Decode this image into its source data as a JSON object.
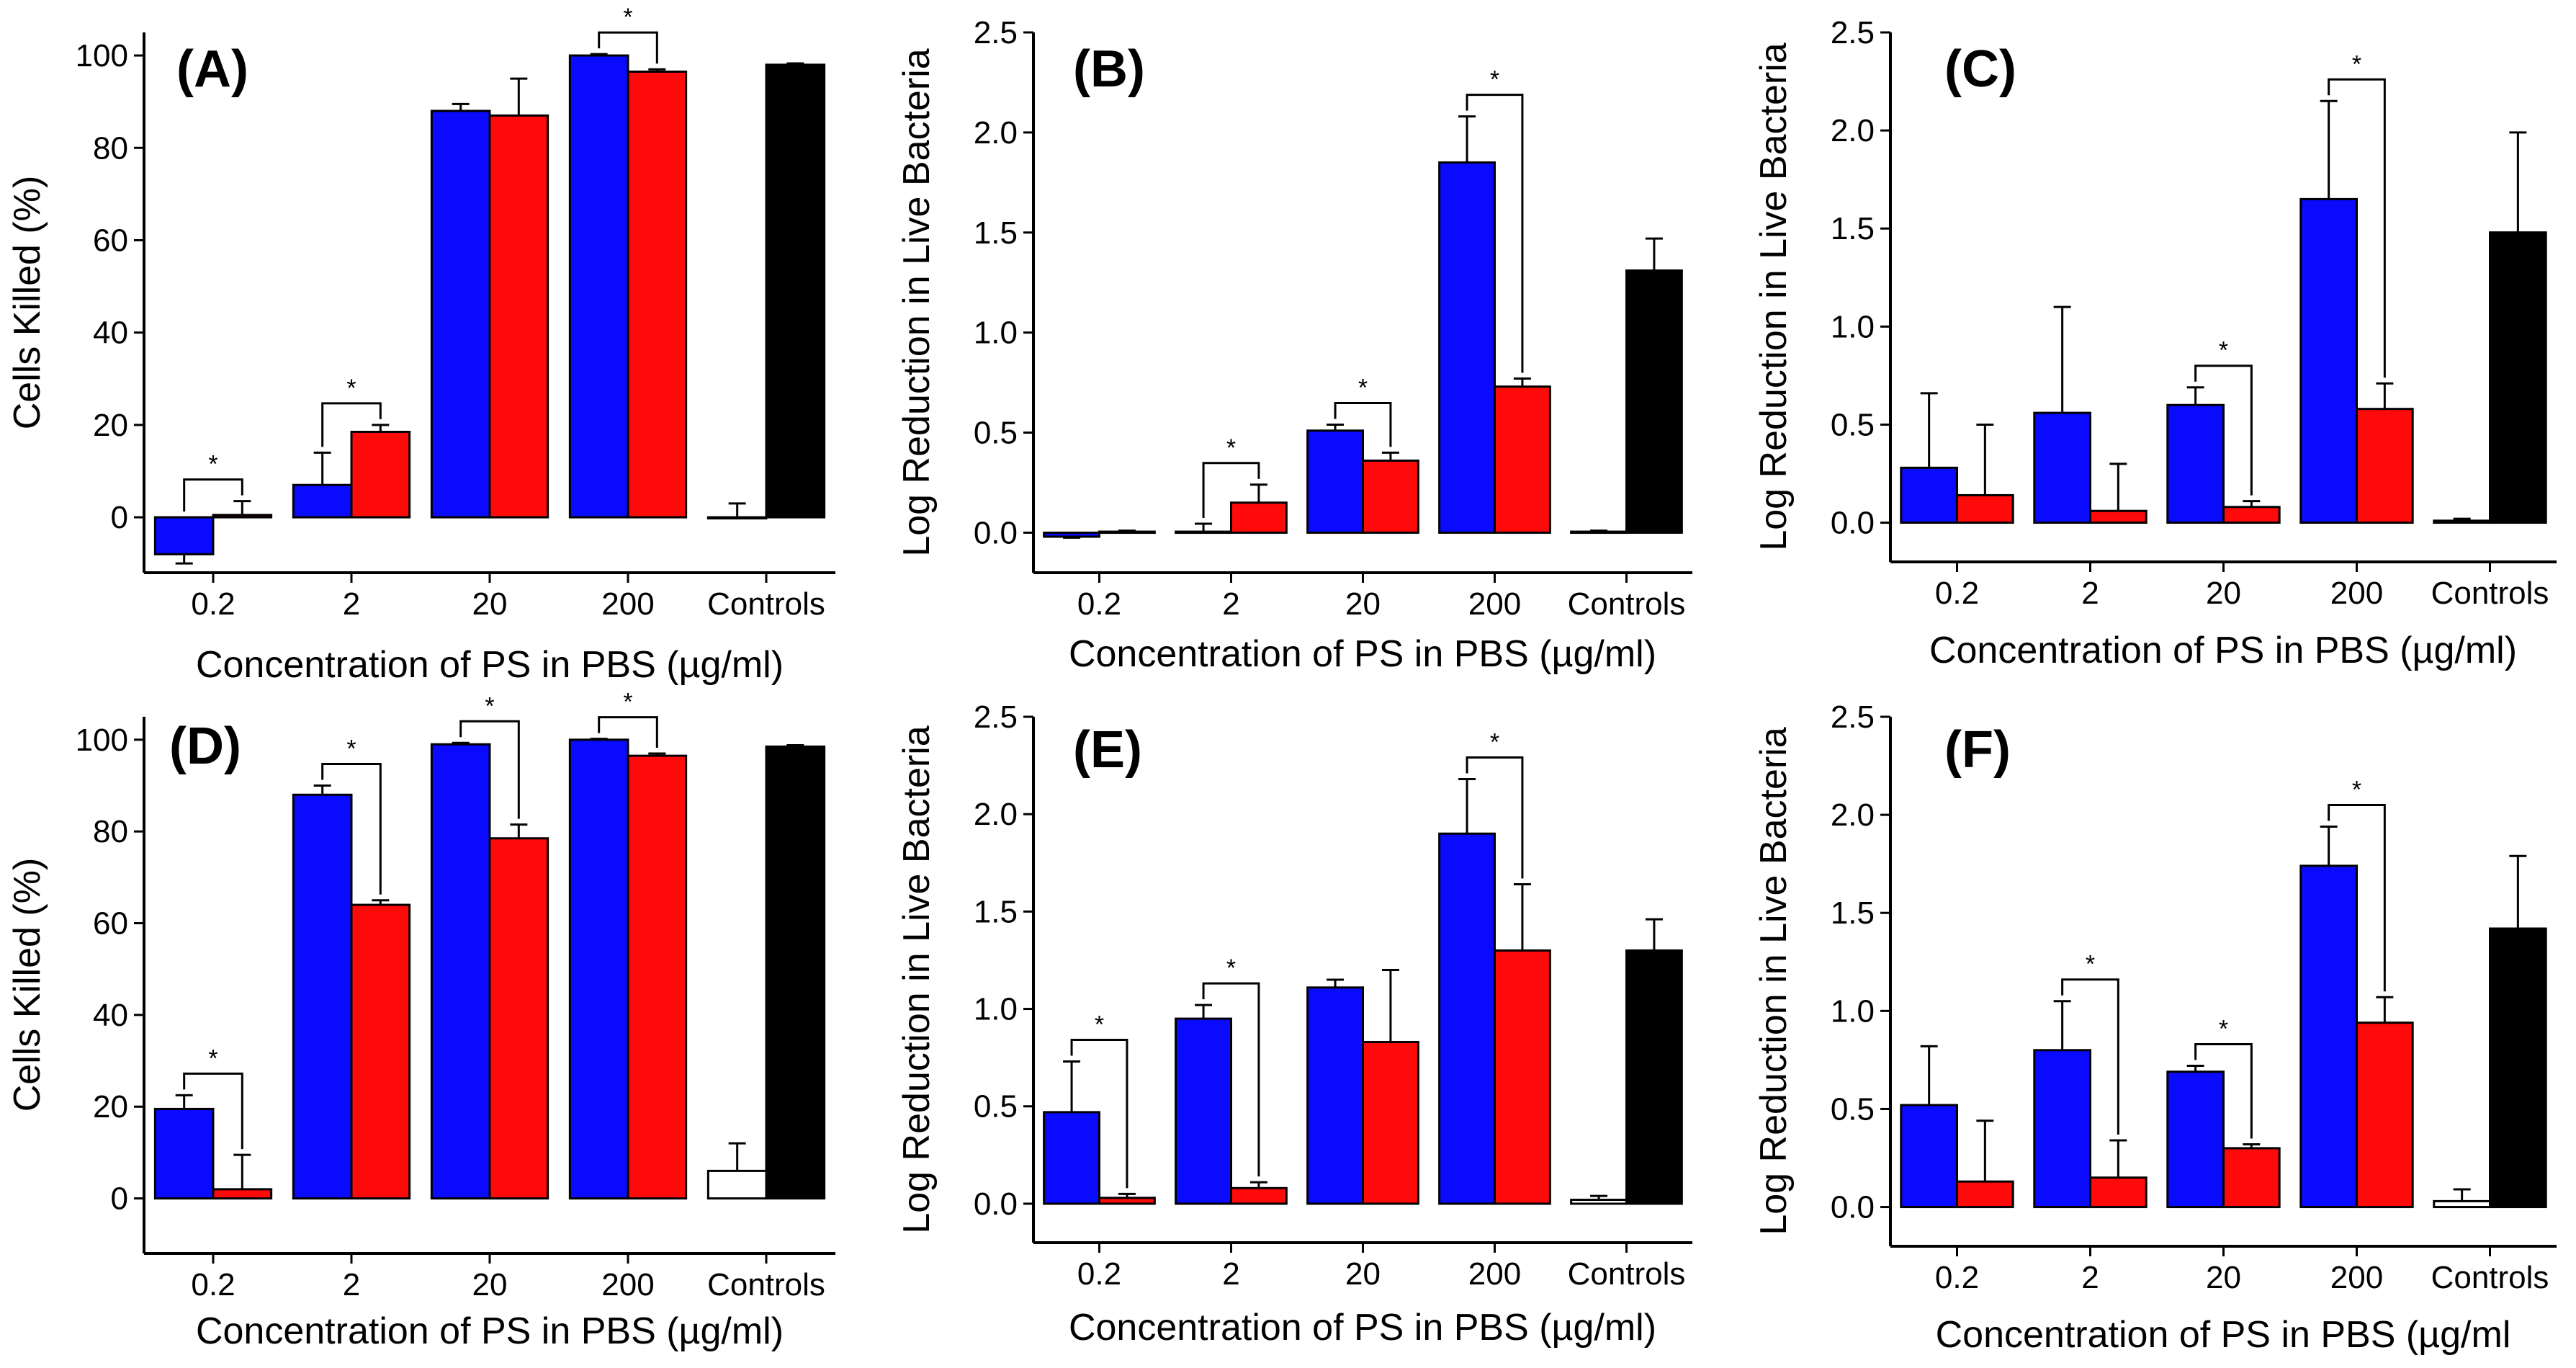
{
  "colors": {
    "series1": "#0a0aff",
    "series2": "#ff0a0a",
    "control_neg": "#ffffff",
    "control_pos": "#000000"
  },
  "chart_data": [
    {
      "id": "A",
      "type": "bar",
      "panel_label": "(A)",
      "xlabel": "Concentration of PS in PBS (µg/ml)",
      "ylabel": "Cells Killed (%)",
      "ylim": [
        -12,
        105
      ],
      "yticks": [
        0,
        20,
        40,
        60,
        80,
        100
      ],
      "ytick_labels": [
        "0",
        "20",
        "40",
        "60",
        "80",
        "100"
      ],
      "categories": [
        "0.2",
        "2",
        "20",
        "200",
        "Controls"
      ],
      "series": [
        {
          "name": "blue",
          "values": [
            -8,
            7,
            88,
            100,
            0
          ],
          "errors": [
            2,
            7,
            1.5,
            0.3,
            3
          ]
        },
        {
          "name": "red",
          "values": [
            0.5,
            18.5,
            87,
            96.5,
            98
          ],
          "errors": [
            3,
            1.5,
            8,
            0.5,
            0.3
          ]
        }
      ],
      "significance": [
        "*",
        "*",
        "",
        "*",
        ""
      ]
    },
    {
      "id": "B",
      "type": "bar",
      "panel_label": "(B)",
      "xlabel": "Concentration of PS in PBS (µg/ml)",
      "ylabel": "Log Reduction in Live Bacteria",
      "ylim": [
        -0.2,
        2.5
      ],
      "yticks": [
        0,
        0.5,
        1,
        1.5,
        2,
        2.5
      ],
      "ytick_labels": [
        "0.0",
        "0.5",
        "1.0",
        "1.5",
        "2.0",
        "2.5"
      ],
      "categories": [
        "0.2",
        "2",
        "20",
        "200",
        "Controls"
      ],
      "series": [
        {
          "name": "blue",
          "values": [
            -0.02,
            0.005,
            0.51,
            1.85,
            0.005
          ],
          "errors": [
            0.005,
            0.04,
            0.03,
            0.23,
            0.005
          ]
        },
        {
          "name": "red",
          "values": [
            0.005,
            0.15,
            0.36,
            0.73,
            1.31
          ],
          "errors": [
            0.005,
            0.09,
            0.04,
            0.04,
            0.16
          ]
        }
      ],
      "significance": [
        "",
        "*",
        "*",
        "*",
        ""
      ]
    },
    {
      "id": "C",
      "type": "bar",
      "panel_label": "(C)",
      "xlabel": "Concentration of PS in PBS (µg/ml)",
      "ylabel": "Log Reduction in Live Bacteria",
      "ylim": [
        -0.2,
        2.5
      ],
      "yticks": [
        0,
        0.5,
        1,
        1.5,
        2,
        2.5
      ],
      "ytick_labels": [
        "0.0",
        "0.5",
        "1.0",
        "1.5",
        "2.0",
        "2.5"
      ],
      "categories": [
        "0.2",
        "2",
        "20",
        "200",
        "Controls"
      ],
      "series": [
        {
          "name": "blue",
          "values": [
            0.28,
            0.56,
            0.6,
            1.65,
            0.01
          ],
          "errors": [
            0.38,
            0.54,
            0.09,
            0.5,
            0.01
          ]
        },
        {
          "name": "red",
          "values": [
            0.14,
            0.06,
            0.08,
            0.58,
            1.48
          ],
          "errors": [
            0.36,
            0.24,
            0.03,
            0.13,
            0.51
          ]
        }
      ],
      "significance": [
        "",
        "",
        "*",
        "*",
        ""
      ]
    },
    {
      "id": "D",
      "type": "bar",
      "panel_label": "(D)",
      "xlabel": "Concentration of PS in PBS (µg/ml)",
      "ylabel": "Cells Killed (%)",
      "ylim": [
        -12,
        105
      ],
      "yticks": [
        0,
        20,
        40,
        60,
        80,
        100
      ],
      "ytick_labels": [
        "0",
        "20",
        "40",
        "60",
        "80",
        "100"
      ],
      "categories": [
        "0.2",
        "2",
        "20",
        "200",
        "Controls"
      ],
      "series": [
        {
          "name": "blue",
          "values": [
            19.5,
            88,
            99,
            100,
            6
          ],
          "errors": [
            3,
            2,
            0.3,
            0.2,
            6
          ]
        },
        {
          "name": "red",
          "values": [
            2,
            64,
            78.5,
            96.5,
            98.5
          ],
          "errors": [
            7.5,
            1,
            3,
            0.5,
            0.3
          ]
        }
      ],
      "significance": [
        "*",
        "*",
        "*",
        "*",
        ""
      ]
    },
    {
      "id": "E",
      "type": "bar",
      "panel_label": "(E)",
      "xlabel": "Concentration of PS in PBS (µg/ml)",
      "ylabel": "Log Reduction in Live Bacteria",
      "ylim": [
        -0.2,
        2.5
      ],
      "yticks": [
        0,
        0.5,
        1,
        1.5,
        2,
        2.5
      ],
      "ytick_labels": [
        "0.0",
        "0.5",
        "1.0",
        "1.5",
        "2.0",
        "2.5"
      ],
      "categories": [
        "0.2",
        "2",
        "20",
        "200",
        "Controls"
      ],
      "series": [
        {
          "name": "blue",
          "values": [
            0.47,
            0.95,
            1.11,
            1.9,
            0.02
          ],
          "errors": [
            0.26,
            0.07,
            0.04,
            0.28,
            0.02
          ]
        },
        {
          "name": "red",
          "values": [
            0.03,
            0.08,
            0.83,
            1.3,
            1.3
          ],
          "errors": [
            0.02,
            0.03,
            0.37,
            0.34,
            0.16
          ]
        }
      ],
      "significance": [
        "*",
        "*",
        "",
        "*",
        ""
      ]
    },
    {
      "id": "F",
      "type": "bar",
      "panel_label": "(F)",
      "xlabel": "Concentration of PS in PBS (µg/ml",
      "ylabel": "Log Reduction in Live Bacteria",
      "ylim": [
        -0.2,
        2.5
      ],
      "yticks": [
        0,
        0.5,
        1,
        1.5,
        2,
        2.5
      ],
      "ytick_labels": [
        "0.0",
        "0.5",
        "1.0",
        "1.5",
        "2.0",
        "2.5"
      ],
      "categories": [
        "0.2",
        "2",
        "20",
        "200",
        "Controls"
      ],
      "series": [
        {
          "name": "blue",
          "values": [
            0.52,
            0.8,
            0.69,
            1.74,
            0.03
          ],
          "errors": [
            0.3,
            0.25,
            0.03,
            0.2,
            0.06
          ]
        },
        {
          "name": "red",
          "values": [
            0.13,
            0.15,
            0.3,
            0.94,
            1.42
          ],
          "errors": [
            0.31,
            0.19,
            0.02,
            0.13,
            0.37
          ]
        }
      ],
      "significance": [
        "",
        "*",
        "*",
        "*",
        ""
      ]
    }
  ]
}
